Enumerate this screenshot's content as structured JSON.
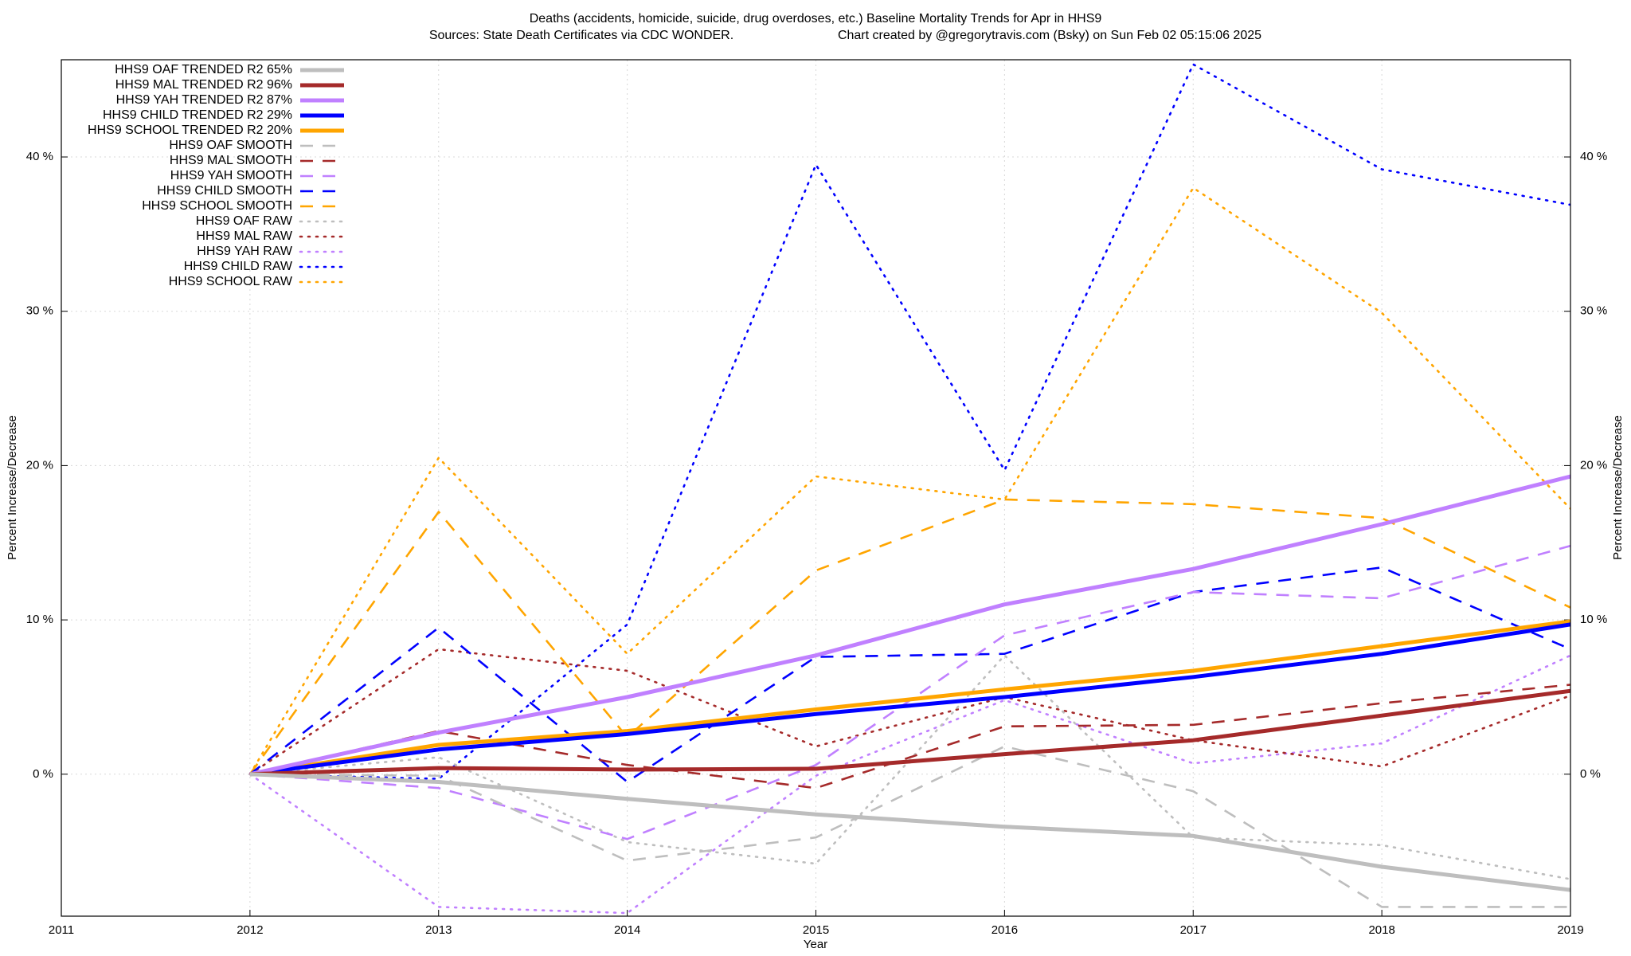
{
  "chart_data": {
    "type": "line",
    "title": "Deaths (accidents, homicide, suicide, drug overdoses, etc.)  Baseline Mortality Trends for Apr in HHS9",
    "subtitle": "Sources: State Death Certificates via CDC WONDER.",
    "credit": "Chart created by @gregorytravis.com (Bsky) on Sun Feb 02 05:15:06 2025",
    "x_label": "Year",
    "y_label": "Percent Increase/Decrease",
    "y2_label": "Percent Increase/Decrease",
    "x": [
      2012,
      2013,
      2014,
      2015,
      2016,
      2017,
      2018,
      2019
    ],
    "xlim": [
      2011,
      2019
    ],
    "xticks": [
      2011,
      2012,
      2013,
      2014,
      2015,
      2016,
      2017,
      2018,
      2019
    ],
    "ylim": [
      -9.2,
      46.3
    ],
    "yticks": [
      {
        "value": 0,
        "label": "0 %"
      },
      {
        "value": 10,
        "label": "10 %"
      },
      {
        "value": 20,
        "label": "20 %"
      },
      {
        "value": 30,
        "label": "30 %"
      },
      {
        "value": 40,
        "label": "40 %"
      }
    ],
    "grid": true,
    "legend": "top-left",
    "series": [
      {
        "name": "HHS9 OAF TRENDED R2  65%",
        "color": "#bebebe",
        "style": "solid",
        "width": 5,
        "values": [
          0,
          -0.5,
          -1.6,
          -2.6,
          -3.4,
          -4.0,
          -6.0,
          -7.5
        ]
      },
      {
        "name": "HHS9 MAL TRENDED R2  96%",
        "color": "#a52a2a",
        "style": "solid",
        "width": 5,
        "values": [
          0,
          0.4,
          0.3,
          0.35,
          1.3,
          2.2,
          3.8,
          5.4
        ]
      },
      {
        "name": "HHS9 YAH TRENDED R2  87%",
        "color": "#c080ff",
        "style": "solid",
        "width": 5,
        "values": [
          0,
          2.7,
          5.0,
          7.7,
          11.0,
          13.3,
          16.2,
          19.3
        ]
      },
      {
        "name": "HHS9 CHILD TRENDED R2  29%",
        "color": "#0000ff",
        "style": "solid",
        "width": 5,
        "values": [
          0,
          1.6,
          2.6,
          3.9,
          5.0,
          6.3,
          7.8,
          9.7
        ]
      },
      {
        "name": "HHS9 SCHOOL TRENDED R2  20%",
        "color": "#ffa500",
        "style": "solid",
        "width": 5,
        "values": [
          0,
          1.9,
          2.8,
          4.2,
          5.5,
          6.7,
          8.3,
          9.9
        ]
      },
      {
        "name": "HHS9 OAF SMOOTH",
        "color": "#bebebe",
        "style": "dashed",
        "width": 2.6,
        "values": [
          0,
          -0.1,
          -5.6,
          -4.1,
          1.8,
          -1.1,
          -8.6,
          -8.6
        ]
      },
      {
        "name": "HHS9 MAL SMOOTH",
        "color": "#a52a2a",
        "style": "dashed",
        "width": 2.6,
        "values": [
          0,
          2.8,
          0.6,
          -0.9,
          3.1,
          3.2,
          4.6,
          5.8
        ]
      },
      {
        "name": "HHS9 YAH SMOOTH",
        "color": "#c080ff",
        "style": "dashed",
        "width": 2.6,
        "values": [
          0,
          -0.9,
          -4.2,
          0.6,
          9.0,
          11.8,
          11.4,
          14.8
        ]
      },
      {
        "name": "HHS9 CHILD SMOOTH",
        "color": "#0000ff",
        "style": "dashed",
        "width": 2.6,
        "values": [
          0,
          9.5,
          -0.5,
          7.6,
          7.8,
          11.8,
          13.4,
          8.1
        ]
      },
      {
        "name": "HHS9 SCHOOL SMOOTH",
        "color": "#ffa500",
        "style": "dashed",
        "width": 2.6,
        "values": [
          0,
          17.0,
          2.4,
          13.2,
          17.8,
          17.5,
          16.6,
          10.8
        ]
      },
      {
        "name": "HHS9 OAF RAW",
        "color": "#bebebe",
        "style": "dotted",
        "width": 2.6,
        "values": [
          0,
          1.1,
          -4.4,
          -5.8,
          7.7,
          -4.1,
          -4.6,
          -6.8
        ]
      },
      {
        "name": "HHS9 MAL RAW",
        "color": "#a52a2a",
        "style": "dotted",
        "width": 2.6,
        "values": [
          0,
          8.1,
          6.7,
          1.8,
          5.0,
          2.2,
          0.5,
          5.1
        ]
      },
      {
        "name": "HHS9 YAH RAW",
        "color": "#c080ff",
        "style": "dotted",
        "width": 2.6,
        "values": [
          0,
          -8.6,
          -9.0,
          -0.1,
          4.8,
          0.7,
          2.0,
          7.7
        ]
      },
      {
        "name": "HHS9 CHILD RAW",
        "color": "#0000ff",
        "style": "dotted",
        "width": 2.6,
        "values": [
          0,
          -0.3,
          9.7,
          39.5,
          19.7,
          46.0,
          39.2,
          36.9
        ]
      },
      {
        "name": "HHS9 SCHOOL RAW",
        "color": "#ffa500",
        "style": "dotted",
        "width": 2.6,
        "values": [
          0,
          20.5,
          7.8,
          19.3,
          17.8,
          38.0,
          29.9,
          17.2
        ]
      }
    ]
  }
}
